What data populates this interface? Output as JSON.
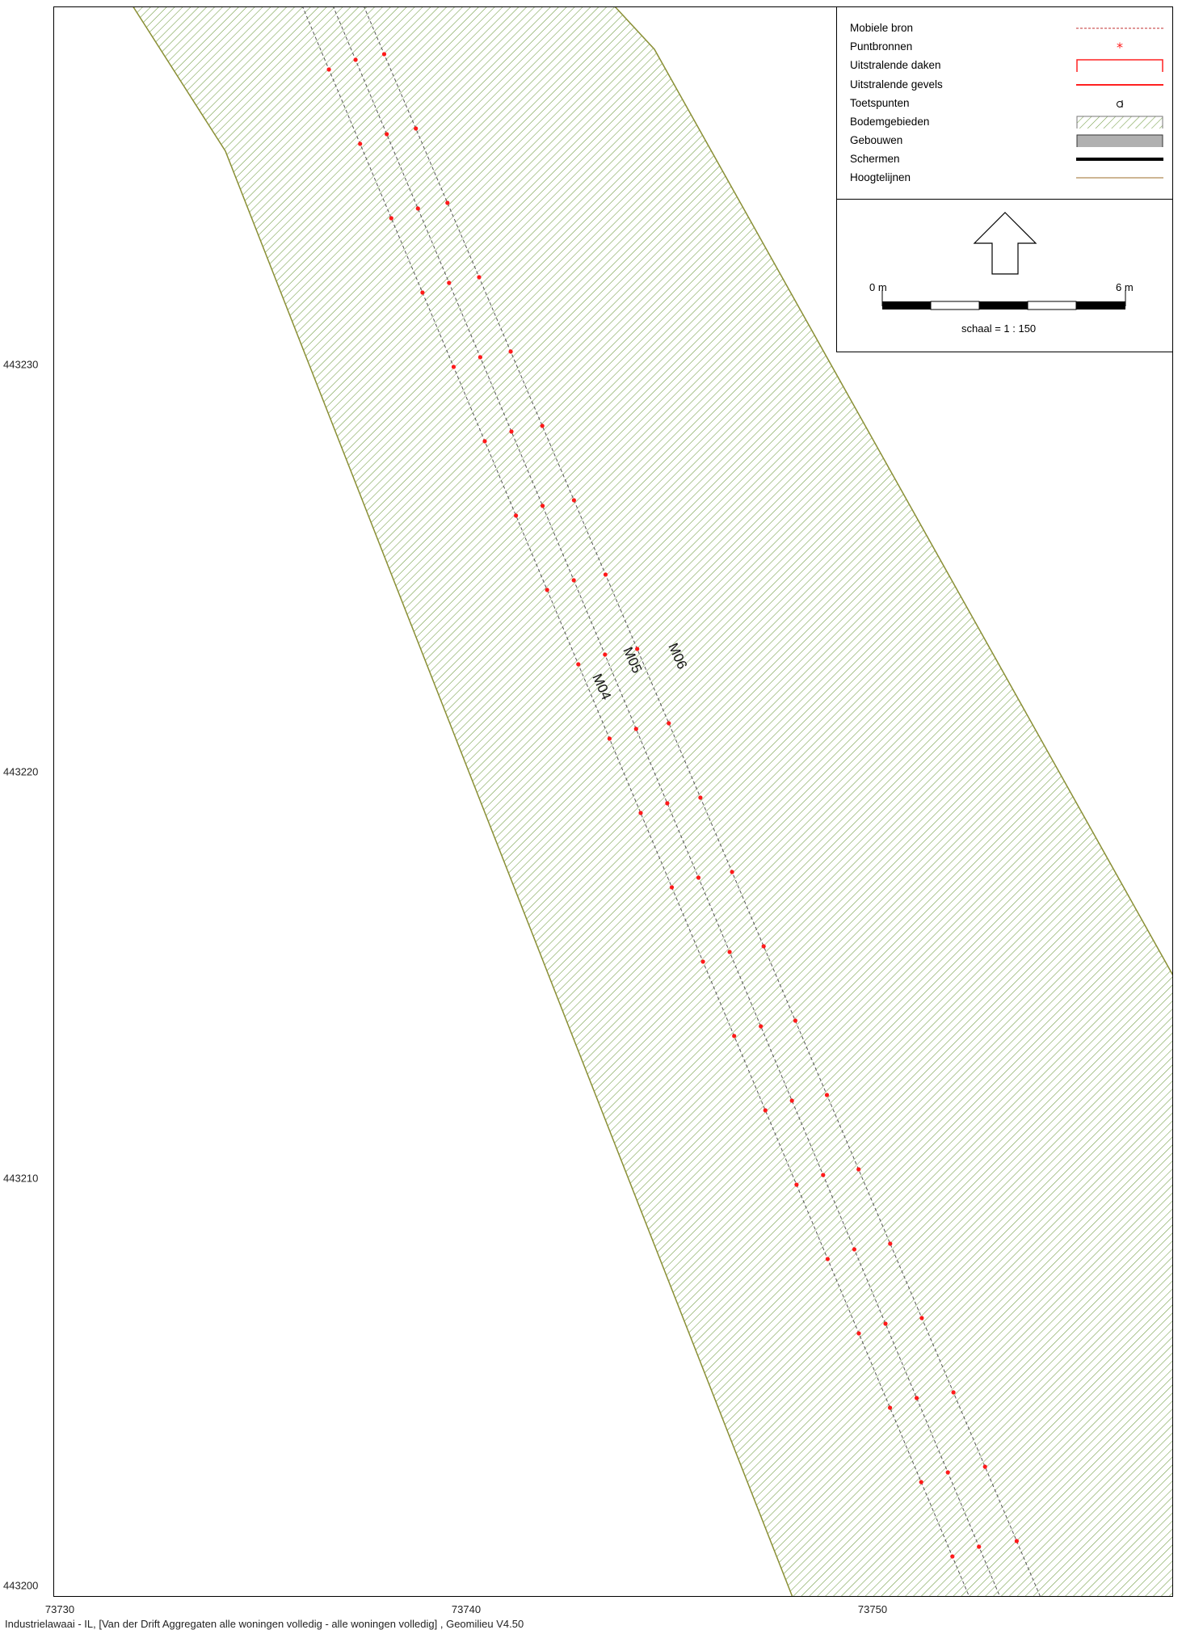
{
  "map": {
    "legend": {
      "items": [
        {
          "label": "Mobiele bron",
          "symbol": "dashed-line"
        },
        {
          "label": "Puntbronnen",
          "symbol": "red-asterisk"
        },
        {
          "label": "Uitstralende daken",
          "symbol": "red-outline-box"
        },
        {
          "label": "Uitstralende gevels",
          "symbol": "red-line"
        },
        {
          "label": "Toetspunten",
          "symbol": "target-marker"
        },
        {
          "label": "Bodemgebieden",
          "symbol": "green-hatch-box"
        },
        {
          "label": "Gebouwen",
          "symbol": "grey-box"
        },
        {
          "label": "Schermen",
          "symbol": "thick-black-line"
        },
        {
          "label": "Hoogtelijnen",
          "symbol": "tan-line"
        }
      ]
    },
    "scale_bar": {
      "start_label": "0 m",
      "end_label": "6 m",
      "scale_text": "schaal = 1 : 150"
    },
    "north_arrow": {
      "icon": "north-arrow-icon"
    },
    "y_axis": {
      "labels": [
        "443230",
        "443220",
        "443210",
        "443200"
      ]
    },
    "x_axis": {
      "labels": [
        "73730",
        "73740",
        "73750"
      ]
    },
    "source_labels": [
      "M04",
      "M05",
      "M06"
    ],
    "colors": {
      "hatch": "#6f9a40",
      "outline": "#8a8f35",
      "source_dot": "#ff1a1a",
      "track_line": "#555555"
    },
    "footer": "Industrielawaai - IL, [Van der Drift Aggregaten alle woningen volledig - alle woningen volledig] , Geomilieu V4.50"
  }
}
